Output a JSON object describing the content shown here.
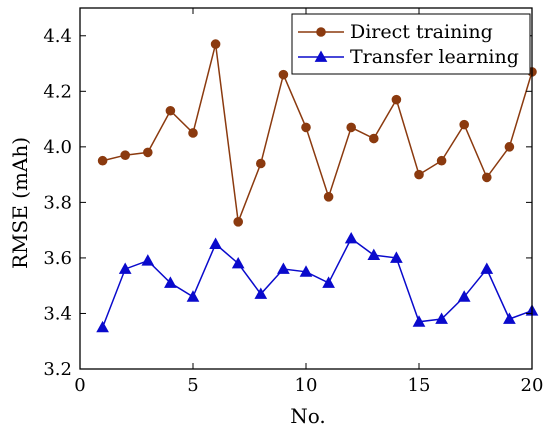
{
  "chart_data": {
    "type": "line",
    "title": "",
    "xlabel": "No.",
    "ylabel": "RMSE (mAh)",
    "xlim": [
      0,
      20
    ],
    "ylim": [
      3.2,
      4.5
    ],
    "xticks": [
      0,
      5,
      10,
      15,
      20
    ],
    "xtick_labels": [
      "0",
      "5",
      "10",
      "15",
      "20"
    ],
    "yticks": [
      3.2,
      3.4,
      3.6,
      3.8,
      4.0,
      4.2,
      4.4
    ],
    "ytick_labels": [
      "3.2",
      "3.4",
      "3.6",
      "3.8",
      "4.0",
      "4.2",
      "4.4"
    ],
    "grid": false,
    "legend_position": "top-right",
    "x": [
      1,
      2,
      3,
      4,
      5,
      6,
      7,
      8,
      9,
      10,
      11,
      12,
      13,
      14,
      15,
      16,
      17,
      18,
      19,
      20
    ],
    "series": [
      {
        "name": "Direct training",
        "color": "#8B3A0F",
        "marker": "circle",
        "values": [
          3.95,
          3.97,
          3.98,
          4.13,
          4.05,
          4.37,
          3.73,
          3.94,
          4.26,
          4.07,
          3.82,
          4.07,
          4.03,
          4.17,
          3.9,
          3.95,
          4.08,
          3.89,
          4.0,
          4.27
        ]
      },
      {
        "name": "Transfer learning",
        "color": "#0A0ACC",
        "marker": "triangle",
        "values": [
          3.35,
          3.56,
          3.59,
          3.51,
          3.46,
          3.65,
          3.58,
          3.47,
          3.56,
          3.55,
          3.51,
          3.67,
          3.61,
          3.6,
          3.37,
          3.38,
          3.46,
          3.56,
          3.38,
          3.41
        ]
      }
    ]
  }
}
